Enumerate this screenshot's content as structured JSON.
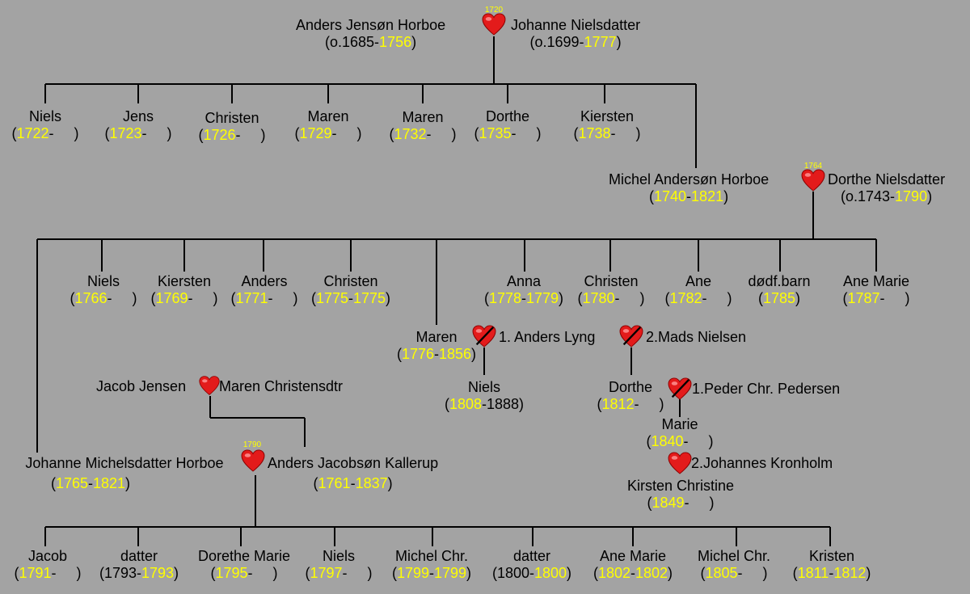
{
  "persons": {
    "anders_horboe": {
      "name": "Anders Jensøn Horboe",
      "pre": "(o.1685-",
      "y1": "",
      "y2": "1756",
      "post": ")"
    },
    "johanne_nielsdatter": {
      "name": "Johanne Nielsdatter",
      "pre": "(o.1699-",
      "y1": "",
      "y2": "1777",
      "post": ")"
    },
    "c1": {
      "name": "Niels",
      "pre": "(",
      "y1": "1722",
      "mid": "-",
      "y2": "",
      "post": ")"
    },
    "c2": {
      "name": "Jens",
      "pre": "(",
      "y1": "1723",
      "mid": "-",
      "y2": "",
      "post": ")"
    },
    "c3": {
      "name": "Christen",
      "pre": "(",
      "y1": "1726",
      "mid": "-",
      "y2": "",
      "post": ")"
    },
    "c4": {
      "name": "Maren",
      "pre": "(",
      "y1": "1729",
      "mid": "-",
      "y2": "",
      "post": ")"
    },
    "c5": {
      "name": "Maren",
      "pre": "(",
      "y1": "1732",
      "mid": "-",
      "y2": "",
      "post": ")"
    },
    "c6": {
      "name": "Dorthe",
      "pre": "(",
      "y1": "1735",
      "mid": "-",
      "y2": "",
      "post": ")"
    },
    "c7": {
      "name": "Kiersten",
      "pre": "(",
      "y1": "1738",
      "mid": "-",
      "y2": "",
      "post": ")"
    },
    "michel": {
      "name": "Michel Andersøn Horboe",
      "pre": "(",
      "y1": "1740",
      "mid": "-",
      "y2": "1821",
      "post": ")"
    },
    "dorthe_n": {
      "name": "Dorthe Nielsdatter",
      "pre": "(o.1743-",
      "y1": "",
      "y2": "1790",
      "post": ")"
    },
    "g1": {
      "name": "Niels",
      "pre": "(",
      "y1": "1766",
      "mid": "-",
      "y2": "",
      "post": ")"
    },
    "g2": {
      "name": "Kiersten",
      "pre": "(",
      "y1": "1769",
      "mid": "-",
      "y2": "",
      "post": ")"
    },
    "g3": {
      "name": "Anders",
      "pre": "(",
      "y1": "1771",
      "mid": "-",
      "y2": "",
      "post": ")"
    },
    "g4": {
      "name": "Christen",
      "pre": "(",
      "y1": "1775",
      "mid": "-",
      "y2": "1775",
      "post": ")"
    },
    "g5": {
      "name": "Anna",
      "pre": "(",
      "y1": "1778",
      "mid": "-",
      "y2": "1779",
      "post": ")"
    },
    "g6": {
      "name": "Christen",
      "pre": "(",
      "y1": "1780",
      "mid": "-",
      "y2": "",
      "post": ")"
    },
    "g7": {
      "name": "Ane",
      "pre": "(",
      "y1": "1782",
      "mid": "-",
      "y2": "",
      "post": ")"
    },
    "g8": {
      "name": "dødf.barn",
      "pre": "(",
      "y1": "1785",
      "mid": "",
      "y2": "",
      "post": ")"
    },
    "g9": {
      "name": "Ane Marie",
      "pre": "(",
      "y1": "1787",
      "mid": "-",
      "y2": "",
      "post": ")"
    },
    "maren_m": {
      "name": "Maren",
      "pre": "(",
      "y1": "1776",
      "mid": "-",
      "y2": "1856",
      "post": ")"
    },
    "niels_l": {
      "name": "Niels",
      "pre": "(",
      "y1": "1808",
      "mid": "-1888",
      "y2": "",
      "post": ")"
    },
    "dorthe_m": {
      "name": "Dorthe",
      "pre": "(",
      "y1": "1812",
      "mid": "-",
      "y2": "",
      "post": ")"
    },
    "marie": {
      "name": "Marie",
      "pre": "(",
      "y1": "1840",
      "mid": "-",
      "y2": "",
      "post": ")"
    },
    "kirsten": {
      "name": "Kirsten Christine",
      "pre": "(",
      "y1": "1849",
      "mid": "-",
      "y2": "",
      "post": ")"
    },
    "johanne_m": {
      "name": "Johanne Michelsdatter Horboe",
      "pre": "(",
      "y1": "1765",
      "mid": "-",
      "y2": "1821",
      "post": ")"
    },
    "anders_k": {
      "name": "Anders Jacobsøn Kallerup",
      "pre": "(",
      "y1": "1761",
      "mid": "-",
      "y2": "1837",
      "post": ")"
    },
    "k1": {
      "name": "Jacob",
      "pre": "(",
      "y1": "1791",
      "mid": "-",
      "y2": "",
      "post": ")"
    },
    "k2": {
      "name": "datter",
      "pre": "(1793-",
      "y1": "",
      "mid": "",
      "y2": "1793",
      "post": ")"
    },
    "k3": {
      "name": "Dorethe Marie",
      "pre": "(",
      "y1": "1795",
      "mid": "-",
      "y2": "",
      "post": ")"
    },
    "k4": {
      "name": "Niels",
      "pre": "(",
      "y1": "1797",
      "mid": "-",
      "y2": "",
      "post": ")"
    },
    "k5": {
      "name": "Michel Chr.",
      "pre": "(",
      "y1": "1799",
      "mid": "-",
      "y2": "1799",
      "post": ")"
    },
    "k6": {
      "name": "datter",
      "pre": "(1800-",
      "y1": "",
      "mid": "",
      "y2": "1800",
      "post": ")"
    },
    "k7": {
      "name": "Ane Marie",
      "pre": "(",
      "y1": "1802",
      "mid": "-",
      "y2": "1802",
      "post": ")"
    },
    "k8": {
      "name": "Michel Chr.",
      "pre": "(",
      "y1": "1805",
      "mid": "-",
      "y2": "",
      "post": ")"
    },
    "k9": {
      "name": "Kristen",
      "pre": "(",
      "y1": "1811",
      "mid": "-",
      "y2": "1812",
      "post": ")"
    }
  },
  "single_labels": {
    "jacob_jensen": "Jacob Jensen",
    "maren_christensdtr": "Maren Christensdtr",
    "anders_lyng": "1. Anders Lyng",
    "mads_nielsen": "2.Mads Nielsen",
    "peder": "1.Peder Chr. Pedersen",
    "johannes": "2.Johannes Kronholm"
  },
  "marriage_years": {
    "m1": "1720",
    "m2": "1764",
    "m3": "1790"
  },
  "colors": {
    "background": "#a3a3a3",
    "year": "#ffff00",
    "heart": "#e31b1b",
    "line": "#000000"
  }
}
